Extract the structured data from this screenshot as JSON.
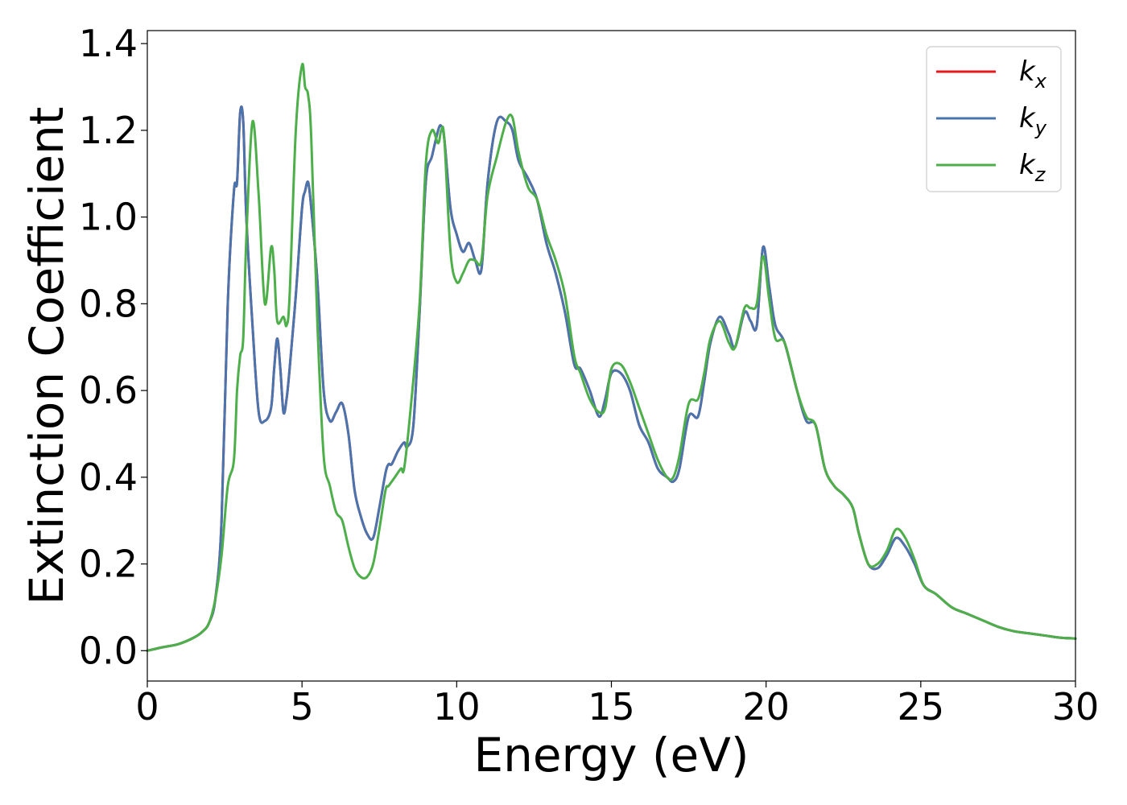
{
  "chart_data": {
    "type": "line",
    "title": "",
    "xlabel": "Energy (eV)",
    "ylabel": "Extinction Coefficient",
    "xlim": [
      0,
      30
    ],
    "ylim": [
      -0.07,
      1.43
    ],
    "xticks": [
      0,
      5,
      10,
      15,
      20,
      25,
      30
    ],
    "xtick_labels": [
      "0",
      "5",
      "10",
      "15",
      "20",
      "25",
      "30"
    ],
    "yticks": [
      0.0,
      0.2,
      0.4,
      0.6,
      0.8,
      1.0,
      1.2,
      1.4
    ],
    "ytick_labels": [
      "0.0",
      "0.2",
      "0.4",
      "0.6",
      "0.8",
      "1.0",
      "1.2",
      "1.4"
    ],
    "grid": false,
    "legend_position": "top-right",
    "series": [
      {
        "name": "k_x",
        "legend_base": "k",
        "legend_sub": "x",
        "color": "#e41a1c",
        "x": [
          0,
          0.5,
          1,
          1.5,
          1.8,
          2.0,
          2.2,
          2.4,
          2.6,
          2.8,
          2.9,
          3.0,
          3.1,
          3.2,
          3.4,
          3.6,
          3.8,
          4.0,
          4.1,
          4.2,
          4.3,
          4.4,
          4.5,
          4.6,
          4.8,
          5.0,
          5.1,
          5.2,
          5.3,
          5.5,
          5.7,
          5.9,
          6.1,
          6.3,
          6.5,
          6.7,
          6.9,
          7.1,
          7.3,
          7.5,
          7.7,
          7.8,
          7.9,
          8.1,
          8.3,
          8.4,
          8.6,
          8.8,
          9.0,
          9.2,
          9.4,
          9.5,
          9.6,
          9.8,
          10.0,
          10.2,
          10.4,
          10.6,
          10.8,
          11.0,
          11.3,
          11.6,
          11.8,
          12.0,
          12.3,
          12.6,
          12.9,
          13.2,
          13.5,
          13.8,
          14.0,
          14.3,
          14.6,
          14.8,
          15.0,
          15.3,
          15.6,
          15.9,
          16.2,
          16.5,
          16.8,
          17.0,
          17.2,
          17.5,
          17.8,
          18.0,
          18.2,
          18.5,
          18.8,
          19.0,
          19.3,
          19.5,
          19.7,
          19.9,
          20.1,
          20.3,
          20.6,
          21.0,
          21.3,
          21.6,
          21.9,
          22.2,
          22.5,
          22.8,
          23.0,
          23.3,
          23.6,
          23.9,
          24.2,
          24.5,
          24.8,
          25.1,
          25.5,
          26.0,
          26.5,
          27.0,
          27.5,
          28.0,
          28.5,
          29.0,
          29.5,
          30
        ],
        "y": [
          0.0,
          0.008,
          0.015,
          0.03,
          0.045,
          0.065,
          0.12,
          0.3,
          0.8,
          1.06,
          1.08,
          1.24,
          1.22,
          1.0,
          0.75,
          0.55,
          0.53,
          0.56,
          0.65,
          0.72,
          0.65,
          0.55,
          0.58,
          0.65,
          0.82,
          1.02,
          1.06,
          1.08,
          1.02,
          0.85,
          0.6,
          0.53,
          0.55,
          0.57,
          0.5,
          0.37,
          0.31,
          0.27,
          0.26,
          0.33,
          0.41,
          0.43,
          0.43,
          0.46,
          0.48,
          0.47,
          0.52,
          0.78,
          1.08,
          1.14,
          1.2,
          1.21,
          1.18,
          1.02,
          0.96,
          0.92,
          0.94,
          0.9,
          0.88,
          1.08,
          1.22,
          1.22,
          1.2,
          1.13,
          1.09,
          1.04,
          0.94,
          0.87,
          0.78,
          0.66,
          0.65,
          0.6,
          0.54,
          0.58,
          0.64,
          0.64,
          0.6,
          0.52,
          0.48,
          0.42,
          0.4,
          0.39,
          0.42,
          0.54,
          0.54,
          0.62,
          0.71,
          0.77,
          0.73,
          0.7,
          0.78,
          0.76,
          0.75,
          0.93,
          0.84,
          0.75,
          0.71,
          0.6,
          0.53,
          0.52,
          0.42,
          0.38,
          0.36,
          0.33,
          0.27,
          0.2,
          0.19,
          0.22,
          0.26,
          0.24,
          0.2,
          0.15,
          0.13,
          0.1,
          0.085,
          0.07,
          0.055,
          0.045,
          0.04,
          0.035,
          0.03,
          0.028
        ]
      },
      {
        "name": "k_y",
        "legend_base": "k",
        "legend_sub": "y",
        "color": "#4a74ad",
        "x": [
          0,
          0.5,
          1,
          1.5,
          1.8,
          2.0,
          2.2,
          2.4,
          2.6,
          2.8,
          2.9,
          3.0,
          3.1,
          3.2,
          3.4,
          3.6,
          3.8,
          4.0,
          4.1,
          4.2,
          4.3,
          4.4,
          4.5,
          4.6,
          4.8,
          5.0,
          5.1,
          5.2,
          5.3,
          5.5,
          5.7,
          5.9,
          6.1,
          6.3,
          6.5,
          6.7,
          6.9,
          7.1,
          7.3,
          7.5,
          7.7,
          7.8,
          7.9,
          8.1,
          8.3,
          8.4,
          8.6,
          8.8,
          9.0,
          9.2,
          9.4,
          9.5,
          9.6,
          9.8,
          10.0,
          10.2,
          10.4,
          10.6,
          10.8,
          11.0,
          11.3,
          11.6,
          11.8,
          12.0,
          12.3,
          12.6,
          12.9,
          13.2,
          13.5,
          13.8,
          14.0,
          14.3,
          14.6,
          14.8,
          15.0,
          15.3,
          15.6,
          15.9,
          16.2,
          16.5,
          16.8,
          17.0,
          17.2,
          17.5,
          17.8,
          18.0,
          18.2,
          18.5,
          18.8,
          19.0,
          19.3,
          19.5,
          19.7,
          19.9,
          20.1,
          20.3,
          20.6,
          21.0,
          21.3,
          21.6,
          21.9,
          22.2,
          22.5,
          22.8,
          23.0,
          23.3,
          23.6,
          23.9,
          24.2,
          24.5,
          24.8,
          25.1,
          25.5,
          26.0,
          26.5,
          27.0,
          27.5,
          28.0,
          28.5,
          29.0,
          29.5,
          30
        ],
        "y": [
          0.0,
          0.008,
          0.015,
          0.03,
          0.045,
          0.065,
          0.12,
          0.3,
          0.8,
          1.06,
          1.08,
          1.24,
          1.22,
          1.0,
          0.75,
          0.55,
          0.53,
          0.56,
          0.65,
          0.72,
          0.65,
          0.55,
          0.58,
          0.65,
          0.82,
          1.02,
          1.06,
          1.08,
          1.02,
          0.85,
          0.6,
          0.53,
          0.55,
          0.57,
          0.5,
          0.37,
          0.31,
          0.27,
          0.26,
          0.33,
          0.41,
          0.43,
          0.43,
          0.46,
          0.48,
          0.47,
          0.52,
          0.78,
          1.08,
          1.14,
          1.2,
          1.21,
          1.18,
          1.02,
          0.96,
          0.92,
          0.94,
          0.9,
          0.88,
          1.08,
          1.22,
          1.22,
          1.2,
          1.13,
          1.09,
          1.04,
          0.94,
          0.87,
          0.78,
          0.66,
          0.65,
          0.6,
          0.54,
          0.58,
          0.64,
          0.64,
          0.6,
          0.52,
          0.48,
          0.42,
          0.4,
          0.39,
          0.42,
          0.54,
          0.54,
          0.62,
          0.71,
          0.77,
          0.73,
          0.7,
          0.78,
          0.76,
          0.75,
          0.93,
          0.84,
          0.75,
          0.71,
          0.6,
          0.53,
          0.52,
          0.42,
          0.38,
          0.36,
          0.33,
          0.27,
          0.2,
          0.19,
          0.22,
          0.26,
          0.24,
          0.2,
          0.15,
          0.13,
          0.1,
          0.085,
          0.07,
          0.055,
          0.045,
          0.04,
          0.035,
          0.03,
          0.028
        ]
      },
      {
        "name": "k_z",
        "legend_base": "k",
        "legend_sub": "z",
        "color": "#4daf4a",
        "x": [
          0,
          0.5,
          1,
          1.5,
          1.8,
          2.0,
          2.2,
          2.4,
          2.6,
          2.8,
          2.9,
          3.0,
          3.1,
          3.2,
          3.4,
          3.6,
          3.8,
          4.0,
          4.1,
          4.2,
          4.4,
          4.5,
          4.6,
          4.8,
          5.0,
          5.1,
          5.2,
          5.3,
          5.5,
          5.7,
          5.9,
          6.1,
          6.3,
          6.5,
          6.7,
          6.9,
          7.1,
          7.3,
          7.5,
          7.7,
          7.8,
          8.0,
          8.2,
          8.3,
          8.5,
          8.8,
          9.0,
          9.2,
          9.4,
          9.5,
          9.6,
          9.8,
          10.0,
          10.2,
          10.4,
          10.6,
          10.8,
          11.0,
          11.3,
          11.6,
          11.8,
          12.0,
          12.3,
          12.6,
          12.9,
          13.2,
          13.5,
          13.8,
          14.0,
          14.3,
          14.6,
          14.8,
          15.0,
          15.3,
          15.6,
          15.9,
          16.2,
          16.5,
          16.8,
          17.0,
          17.2,
          17.5,
          17.8,
          18.0,
          18.2,
          18.5,
          18.8,
          19.0,
          19.3,
          19.5,
          19.7,
          19.9,
          20.1,
          20.3,
          20.6,
          21.0,
          21.3,
          21.6,
          21.9,
          22.2,
          22.5,
          22.8,
          23.0,
          23.3,
          23.6,
          23.9,
          24.2,
          24.5,
          24.8,
          25.1,
          25.5,
          26.0,
          26.5,
          27.0,
          27.5,
          28.0,
          28.5,
          29.0,
          29.5,
          30
        ],
        "y": [
          0.0,
          0.008,
          0.015,
          0.03,
          0.045,
          0.065,
          0.12,
          0.22,
          0.38,
          0.44,
          0.6,
          0.68,
          0.72,
          0.95,
          1.22,
          1.05,
          0.8,
          0.93,
          0.88,
          0.76,
          0.77,
          0.75,
          0.82,
          1.2,
          1.35,
          1.3,
          1.28,
          1.18,
          0.75,
          0.45,
          0.38,
          0.32,
          0.3,
          0.24,
          0.19,
          0.17,
          0.17,
          0.2,
          0.28,
          0.37,
          0.38,
          0.4,
          0.42,
          0.42,
          0.55,
          0.8,
          1.12,
          1.2,
          1.17,
          1.2,
          1.18,
          0.92,
          0.85,
          0.87,
          0.9,
          0.9,
          0.9,
          1.05,
          1.14,
          1.22,
          1.23,
          1.15,
          1.07,
          1.04,
          0.96,
          0.9,
          0.82,
          0.68,
          0.64,
          0.58,
          0.55,
          0.56,
          0.65,
          0.66,
          0.62,
          0.56,
          0.5,
          0.44,
          0.4,
          0.4,
          0.45,
          0.57,
          0.58,
          0.64,
          0.72,
          0.76,
          0.71,
          0.7,
          0.79,
          0.79,
          0.8,
          0.91,
          0.81,
          0.72,
          0.71,
          0.6,
          0.54,
          0.52,
          0.42,
          0.38,
          0.36,
          0.33,
          0.27,
          0.2,
          0.2,
          0.23,
          0.28,
          0.26,
          0.21,
          0.15,
          0.13,
          0.1,
          0.085,
          0.07,
          0.055,
          0.045,
          0.04,
          0.035,
          0.03,
          0.028
        ]
      }
    ]
  }
}
